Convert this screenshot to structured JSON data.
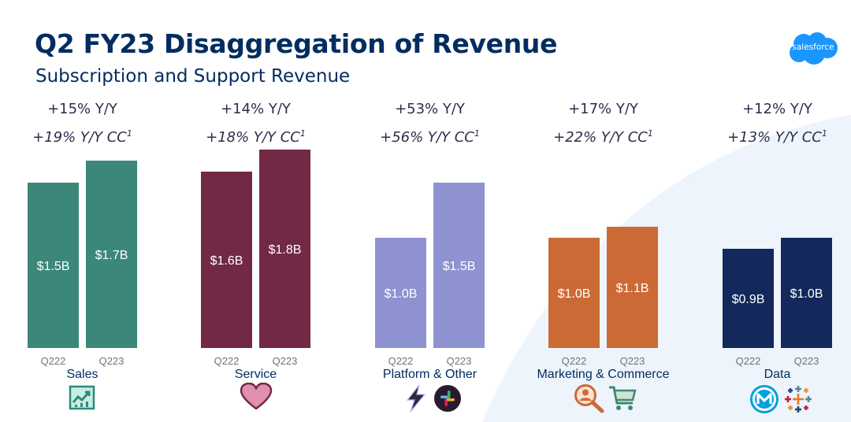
{
  "page": {
    "title": "Q2 FY23 Disaggregation of Revenue",
    "subtitle": "Subscription and Support Revenue"
  },
  "logo": {
    "text": "salesforce"
  },
  "chart_data": {
    "type": "bar",
    "title": "Q2 FY23 Disaggregation of Revenue",
    "subtitle": "Subscription and Support Revenue",
    "categories": [
      "Q222",
      "Q223"
    ],
    "unit": "$B",
    "groups": [
      {
        "name": "Sales",
        "color": "#3b877a",
        "yoy": "+15% Y/Y",
        "yoy_cc": "+19% Y/Y CC",
        "values": [
          1.5,
          1.7
        ],
        "labels": [
          "$1.5B",
          "$1.7B"
        ]
      },
      {
        "name": "Service",
        "color": "#722945",
        "yoy": "+14% Y/Y",
        "yoy_cc": "+18% Y/Y CC",
        "values": [
          1.6,
          1.8
        ],
        "labels": [
          "$1.6B",
          "$1.8B"
        ]
      },
      {
        "name": "Platform & Other",
        "color": "#8e92d0",
        "yoy": "+53% Y/Y",
        "yoy_cc": "+56% Y/Y CC",
        "values": [
          1.0,
          1.5
        ],
        "labels": [
          "$1.0B",
          "$1.5B"
        ]
      },
      {
        "name": "Marketing & Commerce",
        "color": "#cc6a35",
        "yoy": "+17% Y/Y",
        "yoy_cc": "+22% Y/Y CC",
        "values": [
          1.0,
          1.1
        ],
        "labels": [
          "$1.0B",
          "$1.1B"
        ]
      },
      {
        "name": "Data",
        "color": "#13295c",
        "yoy": "+12% Y/Y",
        "yoy_cc": "+13% Y/Y CC",
        "values": [
          0.9,
          1.0
        ],
        "labels": [
          "$0.9B",
          "$1.0B"
        ]
      }
    ],
    "footnote_marker": "1"
  },
  "colors": {
    "title": "#032d60",
    "background_swoosh": "#eef4fb",
    "logo": "#1b96ff"
  },
  "icons": [
    "chart-trend-icon",
    "heart-icon",
    "lightning-bolt-icon",
    "slack-icon",
    "person-search-icon",
    "shopping-cart-icon",
    "mulesoft-icon",
    "tableau-icon"
  ]
}
